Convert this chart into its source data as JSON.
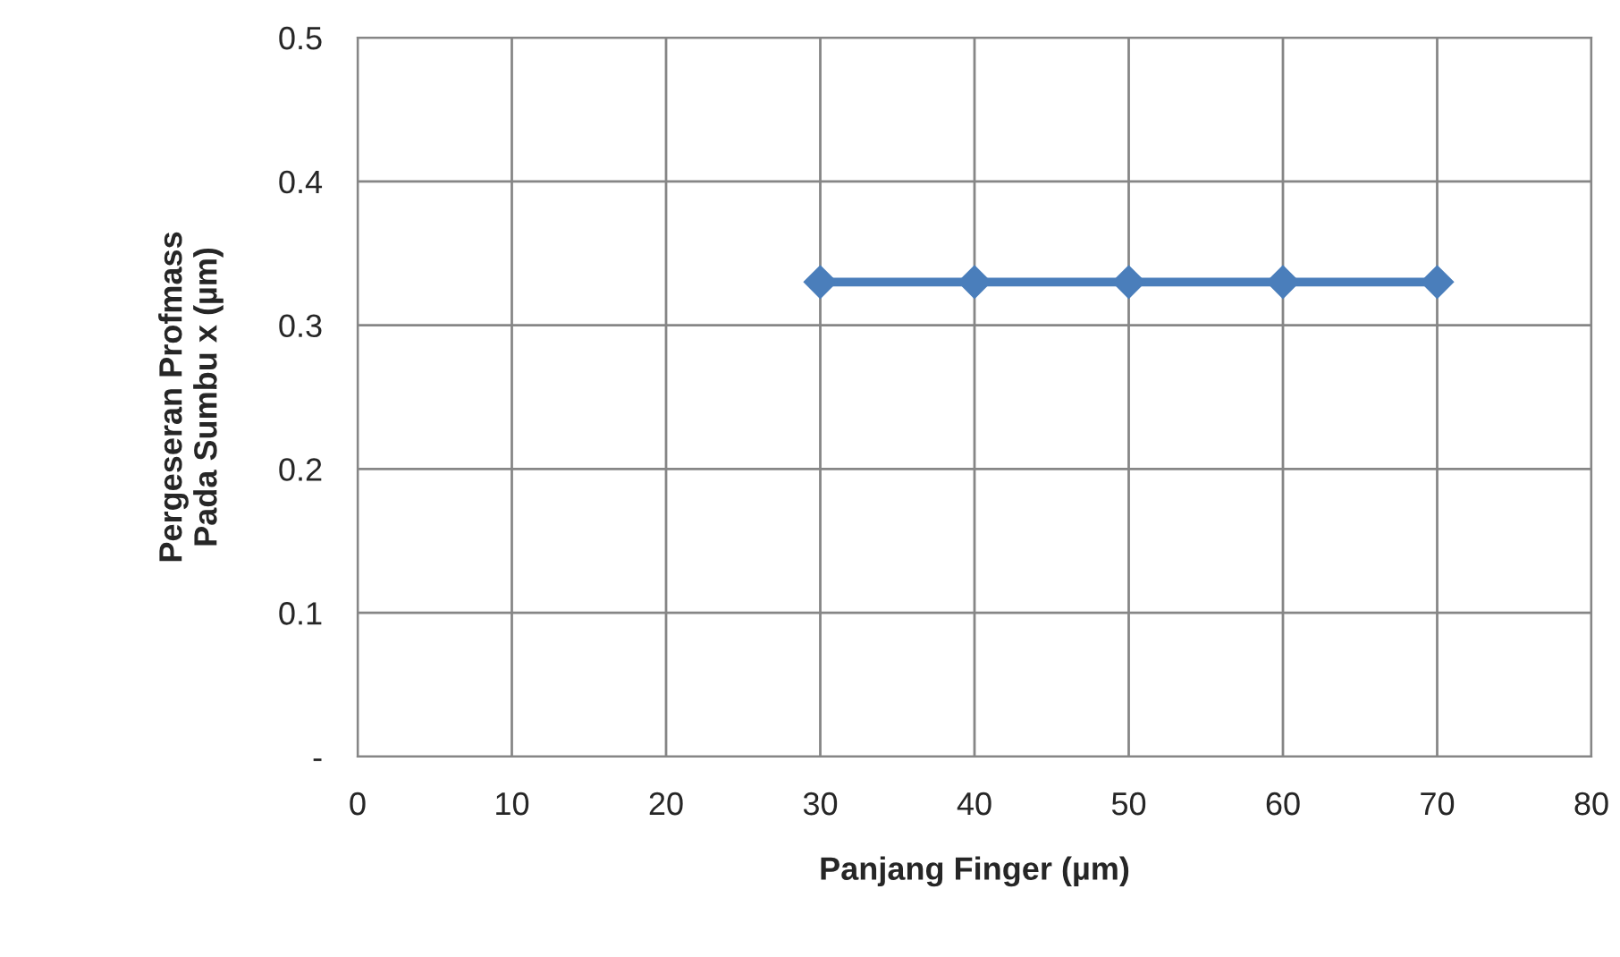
{
  "chart_data": {
    "type": "line",
    "xlabel": "Panjang Finger (µm)",
    "ylabel": "Pergeseran Profmass\nPada Sumbu x (µm)",
    "x": [
      30,
      40,
      50,
      60,
      70
    ],
    "series": [
      {
        "color": "#4a7ebb",
        "values": [
          0.33,
          0.33,
          0.33,
          0.33,
          0.33
        ]
      }
    ],
    "xlim": [
      0,
      80
    ],
    "xticks": [
      0,
      10,
      20,
      30,
      40,
      50,
      60,
      70,
      80
    ],
    "ylim": [
      0,
      0.5
    ],
    "yticks": [
      {
        "value": 0,
        "label": "-"
      },
      0.1,
      0.2,
      0.3,
      0.4,
      0.5
    ],
    "grid": true,
    "marker": "diamond",
    "line_style": "solid"
  }
}
